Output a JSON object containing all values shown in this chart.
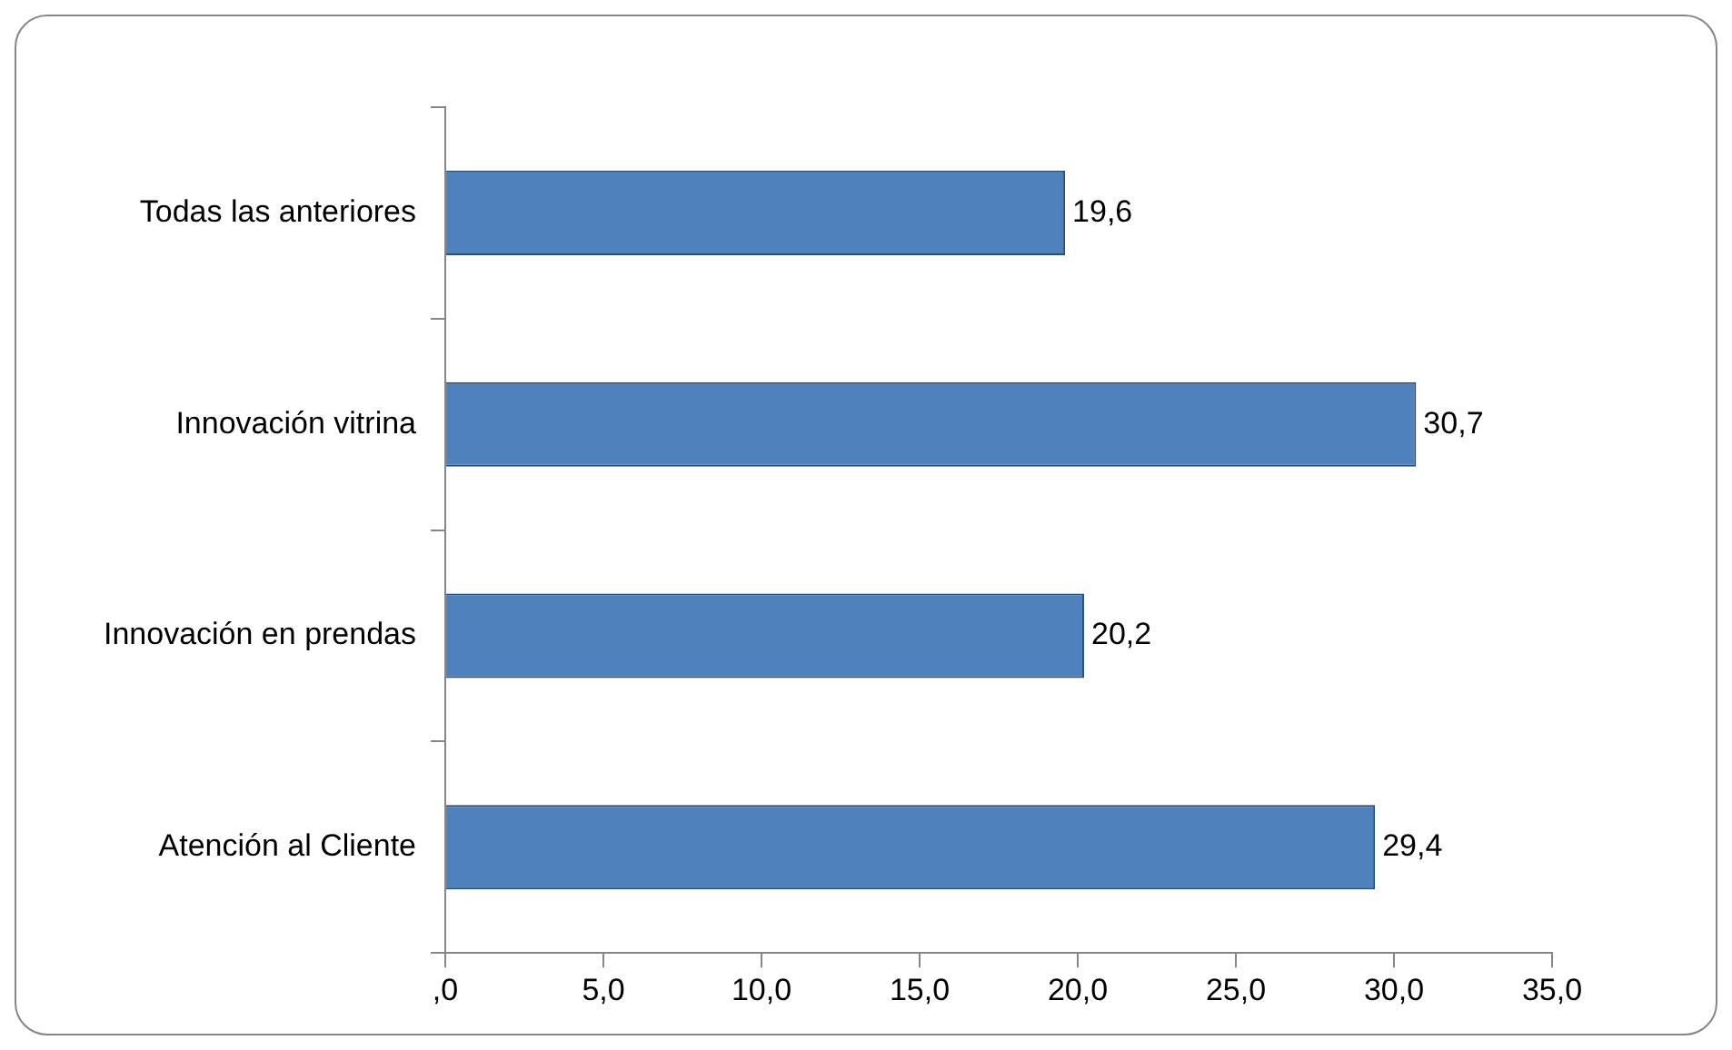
{
  "chart_data": {
    "type": "bar",
    "orientation": "horizontal",
    "categories": [
      "Todas las anteriores",
      "Innovación vitrina",
      "Innovación en prendas",
      "Atención al Cliente"
    ],
    "values": [
      19.6,
      30.7,
      20.2,
      29.4
    ],
    "value_labels": [
      "19,6",
      "30,7",
      "20,2",
      "29,4"
    ],
    "color": "#4f81bd",
    "xlim": [
      0,
      35
    ],
    "xticks": [
      {
        "value": 0,
        "label": ",0"
      },
      {
        "value": 5,
        "label": "5,0"
      },
      {
        "value": 10,
        "label": "10,0"
      },
      {
        "value": 15,
        "label": "15,0"
      },
      {
        "value": 20,
        "label": "20,0"
      },
      {
        "value": 25,
        "label": "25,0"
      },
      {
        "value": 30,
        "label": "30,0"
      },
      {
        "value": 35,
        "label": "35,0"
      }
    ],
    "grid": false,
    "legend": false
  }
}
